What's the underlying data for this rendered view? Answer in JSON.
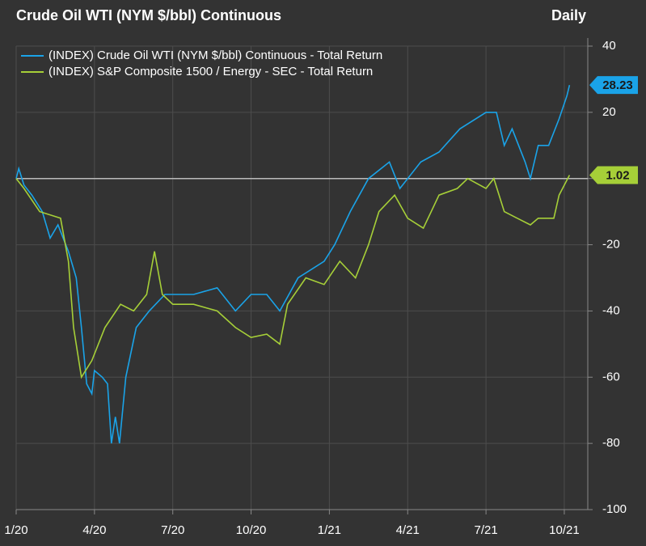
{
  "chart_data": {
    "type": "line",
    "title": "Crude Oil WTI (NYM $/bbl) Continuous",
    "frequency": "Daily",
    "xlim": [
      0,
      21.9
    ],
    "xticks": [
      {
        "value": 0,
        "label": "1/20"
      },
      {
        "value": 3,
        "label": "4/20"
      },
      {
        "value": 6,
        "label": "7/20"
      },
      {
        "value": 9,
        "label": "10/20"
      },
      {
        "value": 12,
        "label": "1/21"
      },
      {
        "value": 15,
        "label": "4/21"
      },
      {
        "value": 18,
        "label": "7/21"
      },
      {
        "value": 21,
        "label": "10/21"
      }
    ],
    "ylim": [
      -100,
      40
    ],
    "yticks": [
      40,
      20,
      0,
      -20,
      -40,
      -60,
      -80,
      -100
    ],
    "grid": true,
    "reference_line": 0,
    "series": [
      {
        "name": "(INDEX) Crude Oil WTI (NYM $/bbl) Continuous - Total Return",
        "color": "#1aa3e8",
        "x": [
          0,
          0.1,
          0.3,
          0.6,
          1.0,
          1.3,
          1.6,
          2.0,
          2.3,
          2.5,
          2.7,
          2.9,
          3.0,
          3.3,
          3.5,
          3.65,
          3.8,
          3.96,
          4.2,
          4.6,
          5.1,
          5.7,
          6.8,
          7.7,
          8.4,
          9.0,
          9.6,
          10.1,
          10.8,
          11.8,
          12.2,
          12.8,
          13.5,
          14.3,
          14.7,
          15.5,
          16.2,
          17.0,
          18.0,
          18.4,
          18.7,
          19.0,
          19.5,
          19.7,
          20.0,
          20.4,
          20.8,
          21.1,
          21.2
        ],
        "values": [
          0,
          3,
          -2,
          -5,
          -10,
          -18,
          -14,
          -22,
          -30,
          -45,
          -62,
          -65,
          -58,
          -60,
          -62,
          -80,
          -72,
          -80,
          -60,
          -45,
          -40,
          -35,
          -35,
          -33,
          -40,
          -35,
          -35,
          -40,
          -30,
          -25,
          -20,
          -10,
          0,
          5,
          -3,
          5,
          8,
          15,
          20,
          20,
          10,
          15,
          5,
          0,
          10,
          10,
          18,
          25,
          28.23
        ]
      },
      {
        "name": "(INDEX) S&P Composite 1500 / Energy - SEC - Total Return",
        "color": "#a6cf38",
        "x": [
          0,
          0.3,
          0.9,
          1.7,
          2.0,
          2.2,
          2.5,
          2.9,
          3.4,
          4.0,
          4.5,
          5.0,
          5.3,
          5.6,
          6.0,
          6.8,
          7.7,
          8.4,
          9.0,
          9.6,
          10.1,
          10.4,
          11.1,
          11.8,
          12.4,
          13.0,
          13.5,
          13.9,
          14.5,
          15.0,
          15.6,
          16.2,
          16.9,
          17.3,
          18.0,
          18.3,
          18.7,
          19.2,
          19.7,
          20.0,
          20.6,
          20.8,
          21.2
        ],
        "values": [
          0,
          -3,
          -10,
          -12,
          -25,
          -45,
          -60,
          -55,
          -45,
          -38,
          -40,
          -35,
          -22,
          -35,
          -38,
          -38,
          -40,
          -45,
          -48,
          -47,
          -50,
          -38,
          -30,
          -32,
          -25,
          -30,
          -20,
          -10,
          -5,
          -12,
          -15,
          -5,
          -3,
          0,
          -3,
          0,
          -10,
          -12,
          -14,
          -12,
          -12,
          -5,
          1.02
        ]
      }
    ]
  }
}
